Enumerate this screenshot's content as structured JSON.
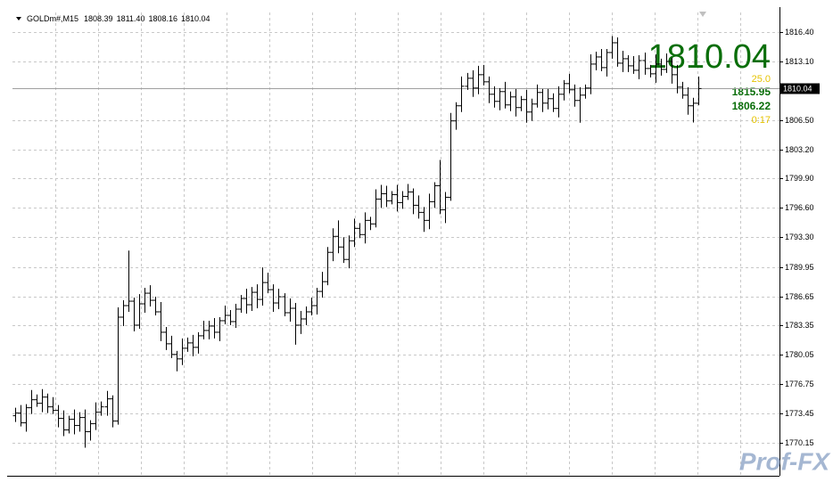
{
  "chart_data": {
    "type": "ohlc",
    "symbol": "GOLDm#,M15",
    "header_values": [
      "1808.39",
      "1811.40",
      "1808.16",
      "1810.04"
    ],
    "last_price": "1810.04",
    "bid": {
      "value": 1810.04,
      "label": "1810.04"
    },
    "info": {
      "spread": "25.0",
      "day_high": "1815.95",
      "day_low": "1806.22",
      "timer": "0:17"
    },
    "ylim": [
      1766.44,
      1818.61
    ],
    "yticks": [
      {
        "value": 1816.4,
        "label": "1816.40"
      },
      {
        "value": 1813.1,
        "label": "1813.10"
      },
      {
        "value": 1806.5,
        "label": "1806.50"
      },
      {
        "value": 1803.2,
        "label": "1803.20"
      },
      {
        "value": 1799.9,
        "label": "1799.90"
      },
      {
        "value": 1796.6,
        "label": "1796.60"
      },
      {
        "value": 1793.3,
        "label": "1793.30"
      },
      1789.95,
      1786.65,
      1783.35,
      {
        "value": 1780.05,
        "label": "1780.05"
      },
      1776.75,
      1773.45,
      1770.15
    ],
    "grid": true,
    "color": "#000000",
    "open": [
      1773.2,
      1773.5,
      1772.4,
      1774.1,
      1775.0,
      1774.6,
      1775.3,
      1774.2,
      1773.8,
      1772.9,
      1771.6,
      1772.8,
      1772.1,
      1773.0,
      1771.4,
      1772.3,
      1773.6,
      1774.2,
      1775.1,
      1772.6,
      1784.3,
      1785.6,
      1786.1,
      1783.4,
      1785.8,
      1787.0,
      1786.2,
      1784.9,
      1782.6,
      1781.3,
      1780.1,
      1779.6,
      1780.8,
      1781.4,
      1780.9,
      1782.2,
      1782.8,
      1783.3,
      1782.6,
      1783.9,
      1784.5,
      1783.8,
      1785.2,
      1786.4,
      1785.7,
      1787.1,
      1786.3,
      1788.2,
      1787.4,
      1785.9,
      1786.6,
      1784.8,
      1785.3,
      1783.4,
      1784.1,
      1784.9,
      1785.6,
      1787.2,
      1788.3,
      1791.6,
      1793.4,
      1792.2,
      1790.8,
      1792.9,
      1794.3,
      1793.6,
      1795.2,
      1794.8,
      1797.6,
      1798.2,
      1797.4,
      1798.1,
      1797.2,
      1797.9,
      1798.4,
      1796.9,
      1796.1,
      1795.2,
      1797.3,
      1799.1,
      1796.4,
      1797.8,
      1806.4,
      1808.1,
      1810.3,
      1811.2,
      1810.1,
      1811.6,
      1810.8,
      1809.4,
      1808.6,
      1809.7,
      1808.2,
      1809.1,
      1807.9,
      1808.8,
      1807.4,
      1808.3,
      1809.6,
      1808.4,
      1808.9,
      1807.8,
      1809.4,
      1810.6,
      1809.9,
      1808.7,
      1809.3,
      1810.1,
      1812.8,
      1813.6,
      1812.4,
      1814.1,
      1815.2,
      1812.9,
      1813.4,
      1812.6,
      1812.1,
      1813.2,
      1812.3,
      1811.7,
      1812.8,
      1812.2,
      1813.1,
      1811.6,
      1810.2,
      1809.3,
      1808.1,
      1808.39
    ],
    "high": [
      1774.1,
      1774.4,
      1774.5,
      1776.1,
      1775.6,
      1776.2,
      1775.7,
      1775.3,
      1774.4,
      1773.8,
      1773.2,
      1773.9,
      1773.6,
      1773.9,
      1772.7,
      1774.7,
      1774.8,
      1776.0,
      1775.5,
      1785.4,
      1786.2,
      1791.8,
      1786.5,
      1786.9,
      1787.6,
      1787.9,
      1786.6,
      1786.0,
      1783.2,
      1782.2,
      1780.5,
      1781.9,
      1782.0,
      1782.3,
      1782.6,
      1783.9,
      1783.9,
      1784.2,
      1784.3,
      1785.6,
      1785.1,
      1785.8,
      1786.8,
      1787.5,
      1787.7,
      1788.0,
      1789.9,
      1789.3,
      1788.0,
      1787.5,
      1787.0,
      1786.4,
      1785.9,
      1785.0,
      1785.5,
      1786.5,
      1787.6,
      1789.4,
      1792.2,
      1794.3,
      1795.2,
      1793.3,
      1793.5,
      1795.4,
      1794.9,
      1796.1,
      1795.6,
      1798.7,
      1799.2,
      1799.1,
      1798.5,
      1799.2,
      1798.5,
      1799.3,
      1798.8,
      1798.0,
      1796.7,
      1798.2,
      1799.5,
      1802.0,
      1798.4,
      1807.3,
      1808.5,
      1811.4,
      1811.8,
      1812.1,
      1812.6,
      1812.7,
      1811.4,
      1810.3,
      1810.1,
      1810.8,
      1809.7,
      1810.0,
      1809.2,
      1809.9,
      1808.9,
      1810.5,
      1810.0,
      1810.0,
      1809.5,
      1810.3,
      1811.0,
      1811.7,
      1810.5,
      1810.2,
      1810.5,
      1813.9,
      1814.2,
      1814.5,
      1814.5,
      1815.95,
      1815.8,
      1814.3,
      1813.8,
      1813.7,
      1813.8,
      1814.1,
      1812.7,
      1813.9,
      1813.4,
      1814.0,
      1813.5,
      1812.7,
      1810.8,
      1810.2,
      1809.0,
      1811.4
    ],
    "low": [
      1772.5,
      1772.0,
      1771.4,
      1773.4,
      1774.2,
      1773.6,
      1773.5,
      1773.4,
      1771.9,
      1770.9,
      1771.2,
      1771.1,
      1771.4,
      1769.6,
      1770.4,
      1771.6,
      1773.2,
      1773.2,
      1771.9,
      1772.2,
      1783.3,
      1784.9,
      1782.7,
      1783.0,
      1784.8,
      1785.5,
      1784.5,
      1781.6,
      1780.6,
      1779.7,
      1778.2,
      1778.9,
      1780.4,
      1779.9,
      1780.2,
      1781.8,
      1781.8,
      1781.9,
      1781.6,
      1783.5,
      1783.4,
      1783.1,
      1784.8,
      1784.7,
      1785.0,
      1785.3,
      1785.6,
      1787.0,
      1784.9,
      1785.2,
      1784.4,
      1783.8,
      1781.2,
      1782.4,
      1783.4,
      1784.5,
      1784.6,
      1786.5,
      1787.9,
      1790.6,
      1791.5,
      1790.4,
      1789.8,
      1792.2,
      1793.2,
      1792.6,
      1794.1,
      1794.4,
      1796.6,
      1796.7,
      1797.0,
      1796.2,
      1796.5,
      1797.5,
      1795.9,
      1795.4,
      1793.9,
      1794.2,
      1796.6,
      1795.9,
      1794.9,
      1797.4,
      1805.4,
      1807.4,
      1809.9,
      1809.1,
      1809.4,
      1810.4,
      1808.4,
      1807.9,
      1807.6,
      1807.8,
      1807.5,
      1806.9,
      1807.5,
      1806.2,
      1806.4,
      1807.9,
      1807.4,
      1807.7,
      1807.4,
      1806.8,
      1808.7,
      1809.5,
      1808.0,
      1806.2,
      1808.9,
      1809.4,
      1812.1,
      1812.0,
      1811.4,
      1813.4,
      1812.5,
      1811.9,
      1811.9,
      1811.7,
      1811.1,
      1811.6,
      1811.3,
      1810.7,
      1811.5,
      1811.8,
      1810.6,
      1809.5,
      1808.9,
      1807.1,
      1806.22,
      1808.16
    ],
    "close": [
      1773.5,
      1772.4,
      1774.1,
      1775.0,
      1774.6,
      1775.3,
      1774.2,
      1773.8,
      1772.9,
      1771.6,
      1772.8,
      1772.1,
      1773.0,
      1771.4,
      1772.3,
      1773.6,
      1774.2,
      1775.1,
      1772.6,
      1784.3,
      1785.6,
      1786.1,
      1783.4,
      1785.8,
      1787.0,
      1786.2,
      1784.9,
      1782.6,
      1781.3,
      1780.1,
      1779.6,
      1780.8,
      1781.4,
      1780.9,
      1782.2,
      1782.8,
      1783.3,
      1782.6,
      1783.9,
      1784.5,
      1783.8,
      1785.2,
      1786.4,
      1785.7,
      1787.1,
      1786.3,
      1788.2,
      1787.4,
      1785.9,
      1786.6,
      1784.8,
      1785.3,
      1783.4,
      1784.1,
      1784.9,
      1785.6,
      1787.2,
      1788.3,
      1791.6,
      1793.4,
      1792.2,
      1790.8,
      1792.9,
      1794.3,
      1793.6,
      1795.2,
      1794.8,
      1797.6,
      1798.2,
      1797.4,
      1798.1,
      1797.2,
      1797.9,
      1798.4,
      1796.9,
      1796.1,
      1795.2,
      1797.3,
      1799.1,
      1796.4,
      1797.8,
      1806.4,
      1808.1,
      1810.3,
      1811.2,
      1810.1,
      1811.6,
      1810.8,
      1809.4,
      1808.6,
      1809.7,
      1808.2,
      1809.1,
      1807.9,
      1808.8,
      1807.4,
      1808.3,
      1809.6,
      1808.4,
      1808.9,
      1807.8,
      1809.4,
      1810.6,
      1809.9,
      1808.7,
      1809.3,
      1810.1,
      1812.8,
      1813.6,
      1812.4,
      1814.1,
      1815.2,
      1812.9,
      1813.4,
      1812.6,
      1812.1,
      1813.2,
      1812.3,
      1811.7,
      1812.8,
      1812.2,
      1813.1,
      1811.6,
      1810.2,
      1809.3,
      1808.1,
      1808.39,
      1810.04
    ]
  },
  "watermark": "Prof-FX"
}
